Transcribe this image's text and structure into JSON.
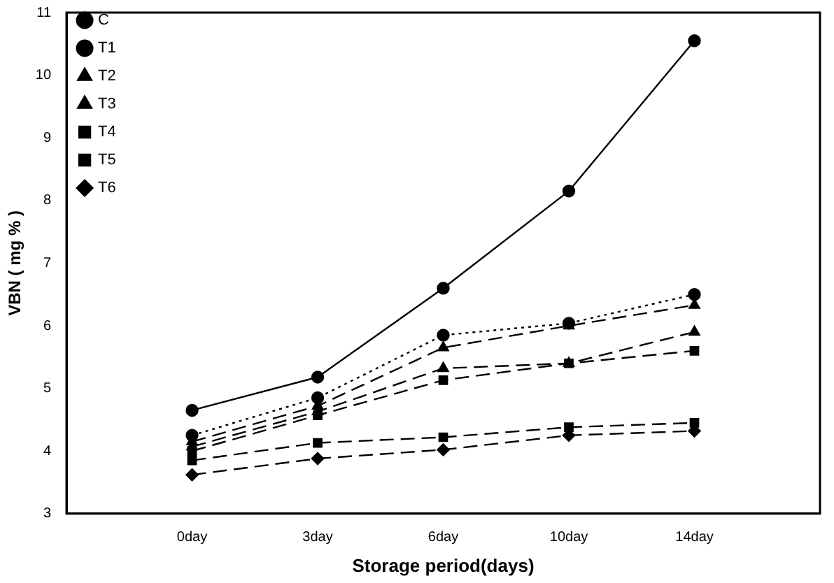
{
  "chart_data": {
    "type": "line",
    "xlabel": "Storage period(days)",
    "ylabel": "VBN ( mg % )",
    "categories": [
      "0day",
      "3day",
      "6day",
      "10day",
      "14day"
    ],
    "ylim": [
      3,
      11
    ],
    "yticks": [
      3,
      4,
      5,
      6,
      7,
      8,
      9,
      10,
      11
    ],
    "legend": "top left",
    "grid": false,
    "series": [
      {
        "name": "C",
        "color": "#000000",
        "marker": "circle",
        "line_style": "solid",
        "values": [
          4.65,
          5.18,
          6.6,
          8.15,
          10.55
        ]
      },
      {
        "name": "T1",
        "color": "#000000",
        "marker": "circle",
        "line_style": "dotted",
        "values": [
          4.25,
          4.85,
          5.85,
          6.04,
          6.5
        ]
      },
      {
        "name": "T2",
        "color": "#000000",
        "marker": "triangle",
        "line_style": "dashed",
        "values": [
          4.15,
          4.72,
          5.65,
          6.0,
          6.33
        ]
      },
      {
        "name": "T3",
        "color": "#000000",
        "marker": "triangle",
        "line_style": "dashed",
        "values": [
          4.07,
          4.63,
          5.32,
          5.4,
          5.9
        ]
      },
      {
        "name": "T4",
        "color": "#000000",
        "marker": "square",
        "line_style": "dashed",
        "values": [
          4.0,
          4.57,
          5.13,
          5.4,
          5.6
        ]
      },
      {
        "name": "T5",
        "color": "#000000",
        "marker": "square",
        "line_style": "dashed",
        "values": [
          3.85,
          4.13,
          4.22,
          4.38,
          4.45
        ]
      },
      {
        "name": "T6",
        "color": "#000000",
        "marker": "diamond",
        "line_style": "dashed",
        "values": [
          3.62,
          3.88,
          4.02,
          4.25,
          4.32
        ]
      }
    ]
  }
}
